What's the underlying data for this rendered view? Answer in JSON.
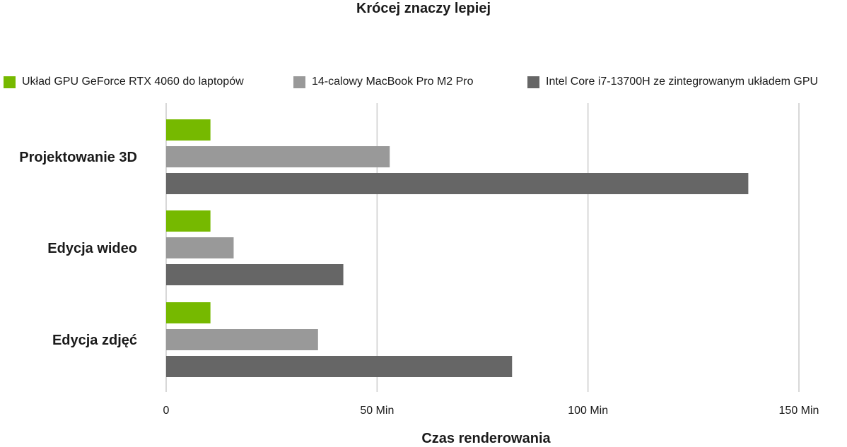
{
  "chart_data": {
    "type": "bar",
    "orientation": "horizontal",
    "title": "Krócej znaczy lepiej",
    "xlabel": "Czas renderowania",
    "categories": [
      "Projektowanie 3D",
      "Edycja wideo",
      "Edycja zdjęć"
    ],
    "series": [
      {
        "name": "Układ GPU GeForce RTX 4060 do laptopów",
        "color": "#76b900",
        "values": [
          10.5,
          10.5,
          10.5
        ]
      },
      {
        "name": "14-calowy MacBook Pro M2 Pro",
        "color": "#999999",
        "values": [
          53,
          16,
          36
        ]
      },
      {
        "name": "Intel Core i7-13700H ze zintegrowanym układem GPU",
        "color": "#666666",
        "values": [
          138,
          42,
          82
        ]
      }
    ],
    "xlim": [
      0,
      150
    ],
    "xticks": [
      0,
      50,
      100,
      150
    ],
    "xtick_labels": [
      "0",
      "50 Min",
      "100 Min",
      "150 Min"
    ],
    "grid": true,
    "legend_position": "top"
  }
}
